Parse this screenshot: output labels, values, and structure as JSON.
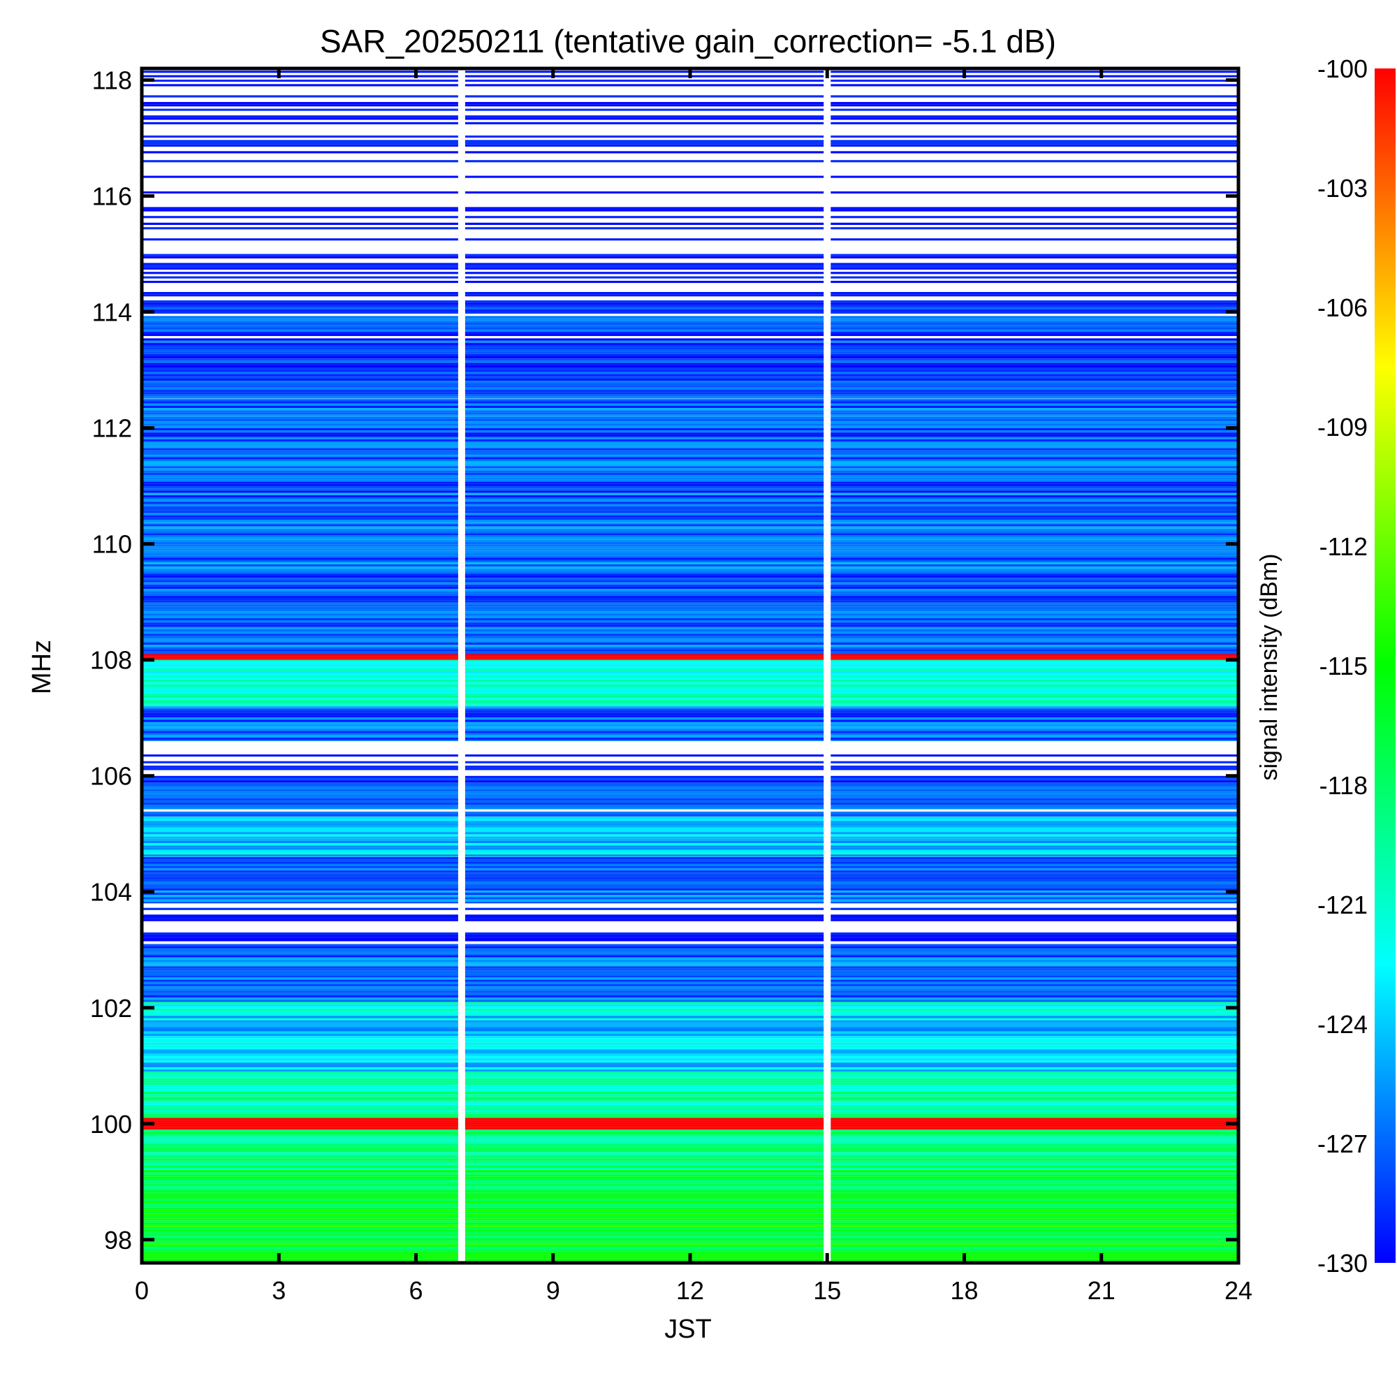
{
  "chart_data": {
    "type": "heatmap",
    "title": "SAR_20250211 (tentative gain_correction= -5.1 dB)",
    "xlabel": "JST",
    "ylabel": "MHz",
    "colorbar_label": "signal intensity (dBm)",
    "xlim": [
      0,
      24
    ],
    "ylim": [
      97.6,
      118.2
    ],
    "xticks": [
      0,
      3,
      6,
      9,
      12,
      15,
      18,
      21,
      24
    ],
    "yticks": [
      98,
      100,
      102,
      104,
      106,
      108,
      110,
      112,
      114,
      116,
      118
    ],
    "colorbar_range": [
      -130,
      -100
    ],
    "colorbar_ticks": [
      -100,
      -103,
      -106,
      -109,
      -112,
      -115,
      -118,
      -121,
      -124,
      -127,
      -130
    ],
    "colormap": [
      "#0000ff",
      "#00ffff",
      "#00ff00",
      "#ffff00",
      "#ff0000"
    ],
    "data_gaps_jst": [
      7.0,
      15.0
    ],
    "frequency_bands": [
      {
        "from": 97.6,
        "to": 98.6,
        "level_dbm": -116
      },
      {
        "from": 98.6,
        "to": 99.2,
        "level_dbm": -117
      },
      {
        "from": 99.2,
        "to": 99.9,
        "level_dbm": -119
      },
      {
        "from": 99.9,
        "to": 100.1,
        "level_dbm": -100
      },
      {
        "from": 100.1,
        "to": 100.9,
        "level_dbm": -120
      },
      {
        "from": 100.9,
        "to": 101.9,
        "level_dbm": -124
      },
      {
        "from": 101.9,
        "to": 102.1,
        "level_dbm": -121
      },
      {
        "from": 102.1,
        "to": 103.1,
        "level_dbm": -127
      },
      {
        "from": 103.1,
        "to": 103.8,
        "level_dbm": -131
      },
      {
        "from": 103.8,
        "to": 104.6,
        "level_dbm": -127
      },
      {
        "from": 104.6,
        "to": 105.3,
        "level_dbm": -124
      },
      {
        "from": 105.3,
        "to": 106.0,
        "level_dbm": -128
      },
      {
        "from": 106.0,
        "to": 106.6,
        "level_dbm": -131
      },
      {
        "from": 106.6,
        "to": 107.2,
        "level_dbm": -127
      },
      {
        "from": 107.2,
        "to": 108.0,
        "level_dbm": -121
      },
      {
        "from": 108.0,
        "to": 108.1,
        "level_dbm": -100
      },
      {
        "from": 108.1,
        "to": 112.5,
        "level_dbm": -127
      },
      {
        "from": 112.5,
        "to": 114.2,
        "level_dbm": -128
      },
      {
        "from": 114.2,
        "to": 118.2,
        "level_dbm": -131
      }
    ],
    "strong_lines_mhz": [
      100.0,
      108.05
    ]
  }
}
